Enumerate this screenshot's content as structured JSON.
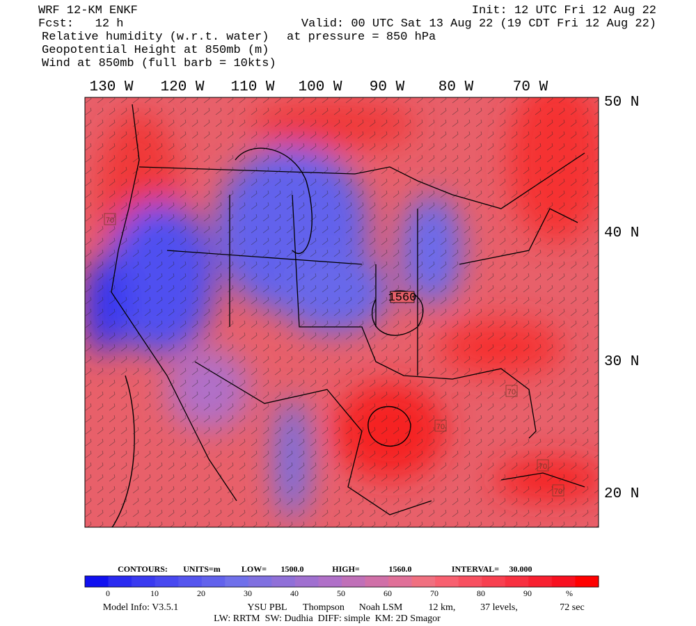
{
  "header": {
    "left": [
      "WRF 12-KM ENKF",
      "Fcst:   12 h",
      "Relative humidity (w.r.t. water)",
      "Geopotential Height at 850mb (m)",
      "Wind at 850mb (full barb = 10kts)"
    ],
    "init": "Init: 12 UTC Fri 12 Aug 22",
    "valid": "Valid: 00 UTC Sat 13 Aug 22 (19 CDT Fri 12 Aug 22)",
    "pressure": "at pressure =  850 hPa"
  },
  "map": {
    "longitudes": [
      "130 W",
      "120 W",
      "110 W",
      "100 W",
      "90 W",
      "80 W",
      "70 W"
    ],
    "latitudes": [
      "50 N",
      "40 N",
      "30 N",
      "20 N"
    ],
    "contour_labels": [
      "1560",
      "70",
      "70",
      "70",
      "70",
      "70"
    ]
  },
  "footer": {
    "contours": [
      "CONTOURS:",
      "UNITS=m",
      "LOW=",
      "1500.0",
      "HIGH=",
      "1560.0",
      "INTERVAL=",
      "30.000"
    ],
    "colorbar_labels": [
      "0",
      "10",
      "20",
      "30",
      "40",
      "50",
      "60",
      "70",
      "80",
      "90",
      "%"
    ],
    "colorbar_colors": [
      "#1010f0",
      "#2a2af0",
      "#3a3af0",
      "#4848f0",
      "#5555ee",
      "#6262ec",
      "#7070ea",
      "#8070e0",
      "#9070d8",
      "#a070d0",
      "#b070c8",
      "#c070b8",
      "#d070a8",
      "#e07098",
      "#f07080",
      "#f86070",
      "#f85060",
      "#f84050",
      "#f83040",
      "#f82030",
      "#f81020",
      "#ff0000"
    ],
    "model_info": [
      "Model Info: V3.5.1",
      "YSU PBL",
      "Thompson",
      "Noah LSM",
      "12 km,",
      "37 levels,",
      "72 sec"
    ],
    "physics": "LW: RRTM  SW: Dudhia  DIFF: simple  KM: 2D Smagor"
  }
}
